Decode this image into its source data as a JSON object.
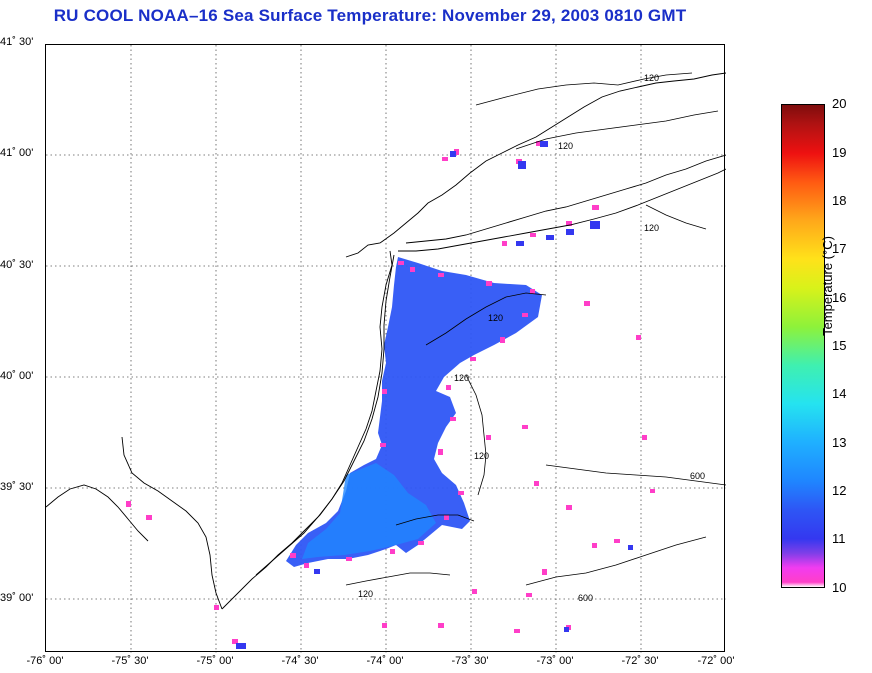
{
  "title": "RU COOL  NOAA–16  Sea Surface Temperature:  November 29, 2003 0810 GMT",
  "map": {
    "lat_labels": [
      "41˚ 30'",
      "41˚ 00'",
      "40˚ 30'",
      "40˚ 00'",
      "39˚ 30'",
      "39˚ 00'"
    ],
    "lon_labels": [
      "-76˚ 00'",
      "-75˚ 30'",
      "-75˚ 00'",
      "-74˚ 30'",
      "-74˚ 00'",
      "-73˚ 30'",
      "-73˚ 00'",
      "-72˚ 30'",
      "-72˚ 00'"
    ],
    "contour_labels": [
      "120",
      "120",
      "120",
      "120",
      "120",
      "120",
      "120",
      "600",
      "600"
    ],
    "bounds": {
      "lat": [
        38.75,
        41.5
      ],
      "lon": [
        -76.0,
        -72.0
      ]
    }
  },
  "colorbar": {
    "label": "Temperature (°C)",
    "ticks": [
      "20",
      "19",
      "18",
      "17",
      "16",
      "15",
      "14",
      "13",
      "12",
      "11",
      "10"
    ],
    "range": [
      10,
      20
    ]
  },
  "colors": {
    "title": "#1a2fc8",
    "land_outline": "#000000",
    "grid": "#555555",
    "sst_dominant": "#2e56f5",
    "sst_cold_edge": "#ff3ec8"
  }
}
